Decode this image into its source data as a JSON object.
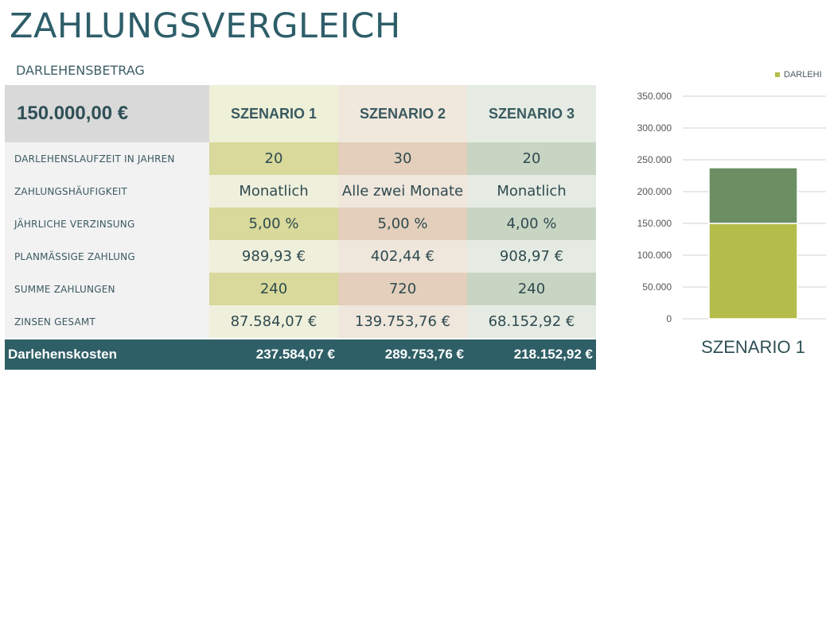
{
  "title": "ZAHLUNGSVERGLEICH",
  "loan_label": "DARLEHENSBETRAG",
  "loan_amount": "150.000,00 €",
  "scenarios": [
    "SZENARIO 1",
    "SZENARIO 2",
    "SZENARIO 3"
  ],
  "rows": [
    {
      "label": "DARLEHENSLAUFZEIT IN JAHREN",
      "values": [
        "20",
        "30",
        "20"
      ]
    },
    {
      "label": "ZAHLUNGSHÄUFIGKEIT",
      "values": [
        "Monatlich",
        "Alle zwei Monate",
        "Monatlich"
      ]
    },
    {
      "label": "JÄHRLICHE VERZINSUNG",
      "values": [
        "5,00 %",
        "5,00 %",
        "4,00 %"
      ]
    },
    {
      "label": "PLANMÄSSIGE ZAHLUNG",
      "values": [
        "989,93 €",
        "402,44 €",
        "908,97 €"
      ]
    },
    {
      "label": "SUMME ZAHLUNGEN",
      "values": [
        "240",
        "720",
        "240"
      ]
    },
    {
      "label": "ZINSEN GESAMT",
      "values": [
        "87.584,07 €",
        "139.753,76 €",
        "68.152,92 €"
      ]
    }
  ],
  "total": {
    "label": "Darlehenskosten",
    "values": [
      "237.584,07 €",
      "289.753,76 €",
      "218.152,92 €"
    ]
  },
  "chart_data": {
    "type": "bar",
    "stacked": true,
    "categories": [
      "SZENARIO 1"
    ],
    "series": [
      {
        "name": "DARLEHI",
        "values": [
          150000
        ],
        "color": "#b5bd4a"
      },
      {
        "values": [
          87584.07
        ],
        "color": "#6b8f63"
      }
    ],
    "ylim": [
      0,
      350000
    ],
    "yticks": [
      "0",
      "50.000",
      "100.000",
      "150.000",
      "200.000",
      "250.000",
      "300.000",
      "350.000"
    ],
    "grid": true,
    "legend": "top-right"
  },
  "legend_label": "DARLEHI"
}
